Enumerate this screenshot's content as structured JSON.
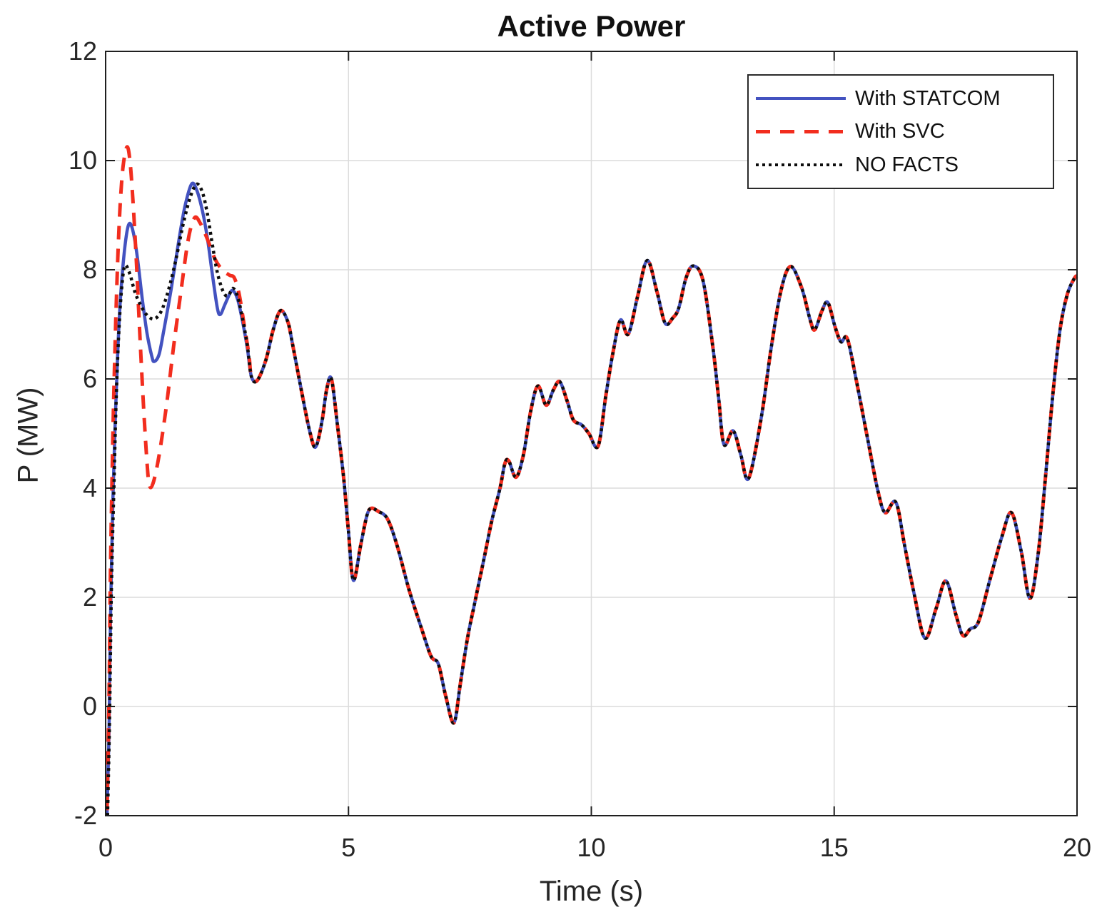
{
  "figure": {
    "title": "Active Power",
    "xlabel": "Time (s)",
    "ylabel": "P (MW)"
  },
  "chart_data": {
    "type": "line",
    "title": "Active Power",
    "xlabel": "Time (s)",
    "ylabel": "P (MW)",
    "xlim": [
      0,
      20
    ],
    "ylim": [
      -2,
      12
    ],
    "xticks": [
      "0",
      "5",
      "10",
      "15",
      "20"
    ],
    "yticks": [
      "-2",
      "0",
      "2",
      "4",
      "6",
      "8",
      "10",
      "12"
    ],
    "grid": true,
    "legend_position": "top-right",
    "colors": {
      "with_statcom": "#4352c0",
      "with_svc": "#f22d1e",
      "no_facts": "#0d0d0d",
      "grid": "#dcdcdc",
      "axis": "#1f1f1f",
      "text": "#262626"
    },
    "series": [
      {
        "name": "With STATCOM",
        "style": "solid",
        "color_key": "with_statcom",
        "head": [
          [
            0.03,
            -1.95
          ],
          [
            0.07,
            -0.4
          ],
          [
            0.1,
            1.6
          ],
          [
            0.15,
            3.8
          ],
          [
            0.2,
            5.3
          ],
          [
            0.25,
            6.5
          ],
          [
            0.3,
            7.4
          ],
          [
            0.37,
            8.2
          ],
          [
            0.44,
            8.7
          ],
          [
            0.5,
            8.85
          ],
          [
            0.57,
            8.68
          ],
          [
            0.65,
            8.25
          ],
          [
            0.75,
            7.5
          ],
          [
            0.85,
            6.85
          ],
          [
            0.95,
            6.42
          ],
          [
            1.0,
            6.32
          ],
          [
            1.1,
            6.45
          ],
          [
            1.2,
            6.9
          ],
          [
            1.35,
            7.65
          ],
          [
            1.5,
            8.5
          ],
          [
            1.63,
            9.15
          ],
          [
            1.77,
            9.57
          ],
          [
            1.88,
            9.45
          ],
          [
            2.0,
            9.05
          ],
          [
            2.1,
            8.55
          ],
          [
            2.2,
            7.9
          ],
          [
            2.3,
            7.3
          ],
          [
            2.36,
            7.18
          ],
          [
            2.45,
            7.35
          ],
          [
            2.55,
            7.55
          ],
          [
            2.62,
            7.62
          ],
          [
            2.72,
            7.45
          ],
          [
            2.82,
            7.05
          ],
          [
            2.92,
            6.55
          ]
        ]
      },
      {
        "name": "With SVC",
        "style": "dashed",
        "color_key": "with_svc",
        "head": [
          [
            0.03,
            -1.9
          ],
          [
            0.07,
            0.2
          ],
          [
            0.1,
            2.5
          ],
          [
            0.15,
            5.0
          ],
          [
            0.2,
            6.8
          ],
          [
            0.25,
            8.2
          ],
          [
            0.3,
            9.2
          ],
          [
            0.36,
            9.9
          ],
          [
            0.44,
            10.25
          ],
          [
            0.5,
            10.0
          ],
          [
            0.56,
            9.3
          ],
          [
            0.63,
            8.2
          ],
          [
            0.7,
            6.9
          ],
          [
            0.78,
            5.5
          ],
          [
            0.85,
            4.5
          ],
          [
            0.9,
            4.05
          ],
          [
            0.98,
            4.1
          ],
          [
            1.1,
            4.6
          ],
          [
            1.25,
            5.5
          ],
          [
            1.4,
            6.6
          ],
          [
            1.55,
            7.6
          ],
          [
            1.7,
            8.55
          ],
          [
            1.83,
            8.95
          ],
          [
            1.95,
            8.85
          ],
          [
            2.1,
            8.55
          ],
          [
            2.25,
            8.2
          ],
          [
            2.4,
            8.0
          ],
          [
            2.55,
            7.9
          ],
          [
            2.65,
            7.85
          ],
          [
            2.75,
            7.55
          ],
          [
            2.85,
            7.0
          ],
          [
            2.95,
            6.45
          ]
        ]
      },
      {
        "name": "NO FACTS",
        "style": "dotted",
        "color_key": "no_facts",
        "head": [
          [
            0.04,
            -2.0
          ],
          [
            0.08,
            -0.3
          ],
          [
            0.12,
            2.2
          ],
          [
            0.17,
            4.0
          ],
          [
            0.22,
            5.7
          ],
          [
            0.28,
            7.0
          ],
          [
            0.34,
            7.75
          ],
          [
            0.4,
            8.08
          ],
          [
            0.5,
            7.92
          ],
          [
            0.6,
            7.6
          ],
          [
            0.72,
            7.35
          ],
          [
            0.85,
            7.17
          ],
          [
            1.0,
            7.1
          ],
          [
            1.15,
            7.25
          ],
          [
            1.3,
            7.65
          ],
          [
            1.45,
            8.2
          ],
          [
            1.6,
            8.85
          ],
          [
            1.75,
            9.35
          ],
          [
            1.88,
            9.57
          ],
          [
            2.0,
            9.4
          ],
          [
            2.1,
            9.0
          ],
          [
            2.2,
            8.45
          ],
          [
            2.3,
            7.95
          ],
          [
            2.42,
            7.6
          ],
          [
            2.52,
            7.52
          ],
          [
            2.62,
            7.66
          ],
          [
            2.72,
            7.5
          ],
          [
            2.82,
            7.1
          ],
          [
            2.92,
            6.6
          ]
        ]
      }
    ],
    "common_tail": [
      [
        3.0,
        6.05
      ],
      [
        3.12,
        5.97
      ],
      [
        3.3,
        6.35
      ],
      [
        3.45,
        6.9
      ],
      [
        3.6,
        7.25
      ],
      [
        3.75,
        7.05
      ],
      [
        3.85,
        6.63
      ],
      [
        4.05,
        5.7
      ],
      [
        4.2,
        5.05
      ],
      [
        4.32,
        4.75
      ],
      [
        4.45,
        5.2
      ],
      [
        4.55,
        5.8
      ],
      [
        4.65,
        6.0
      ],
      [
        4.78,
        5.1
      ],
      [
        4.9,
        4.2
      ],
      [
        5.0,
        3.2
      ],
      [
        5.1,
        2.31
      ],
      [
        5.25,
        2.95
      ],
      [
        5.38,
        3.5
      ],
      [
        5.47,
        3.63
      ],
      [
        5.6,
        3.58
      ],
      [
        5.8,
        3.44
      ],
      [
        6.0,
        2.95
      ],
      [
        6.25,
        2.13
      ],
      [
        6.5,
        1.44
      ],
      [
        6.7,
        0.92
      ],
      [
        6.85,
        0.78
      ],
      [
        7.0,
        0.2
      ],
      [
        7.17,
        -0.3
      ],
      [
        7.3,
        0.4
      ],
      [
        7.45,
        1.25
      ],
      [
        7.6,
        1.9
      ],
      [
        7.8,
        2.75
      ],
      [
        7.95,
        3.4
      ],
      [
        8.12,
        4.0
      ],
      [
        8.22,
        4.45
      ],
      [
        8.3,
        4.5
      ],
      [
        8.45,
        4.2
      ],
      [
        8.6,
        4.6
      ],
      [
        8.75,
        5.4
      ],
      [
        8.9,
        5.87
      ],
      [
        9.07,
        5.52
      ],
      [
        9.22,
        5.8
      ],
      [
        9.35,
        5.95
      ],
      [
        9.5,
        5.6
      ],
      [
        9.63,
        5.25
      ],
      [
        9.8,
        5.16
      ],
      [
        9.95,
        5.0
      ],
      [
        10.14,
        4.77
      ],
      [
        10.3,
        5.7
      ],
      [
        10.45,
        6.5
      ],
      [
        10.6,
        7.08
      ],
      [
        10.76,
        6.82
      ],
      [
        10.95,
        7.5
      ],
      [
        11.15,
        8.17
      ],
      [
        11.35,
        7.6
      ],
      [
        11.52,
        7.02
      ],
      [
        11.68,
        7.12
      ],
      [
        11.8,
        7.3
      ],
      [
        11.95,
        7.85
      ],
      [
        12.1,
        8.07
      ],
      [
        12.3,
        7.8
      ],
      [
        12.5,
        6.6
      ],
      [
        12.62,
        5.66
      ],
      [
        12.73,
        4.8
      ],
      [
        12.92,
        5.05
      ],
      [
        13.08,
        4.6
      ],
      [
        13.24,
        4.18
      ],
      [
        13.5,
        5.3
      ],
      [
        13.7,
        6.55
      ],
      [
        13.9,
        7.6
      ],
      [
        14.1,
        8.06
      ],
      [
        14.33,
        7.67
      ],
      [
        14.5,
        7.1
      ],
      [
        14.6,
        6.9
      ],
      [
        14.75,
        7.25
      ],
      [
        14.87,
        7.4
      ],
      [
        15.02,
        6.95
      ],
      [
        15.14,
        6.68
      ],
      [
        15.27,
        6.74
      ],
      [
        15.45,
        6.0
      ],
      [
        15.7,
        4.85
      ],
      [
        15.9,
        3.95
      ],
      [
        16.05,
        3.55
      ],
      [
        16.27,
        3.74
      ],
      [
        16.45,
        2.95
      ],
      [
        16.65,
        2.05
      ],
      [
        16.87,
        1.25
      ],
      [
        17.1,
        1.8
      ],
      [
        17.3,
        2.3
      ],
      [
        17.5,
        1.7
      ],
      [
        17.65,
        1.3
      ],
      [
        17.8,
        1.42
      ],
      [
        17.97,
        1.55
      ],
      [
        18.2,
        2.3
      ],
      [
        18.45,
        3.1
      ],
      [
        18.65,
        3.55
      ],
      [
        18.85,
        2.85
      ],
      [
        19.03,
        1.98
      ],
      [
        19.2,
        2.8
      ],
      [
        19.35,
        4.2
      ],
      [
        19.5,
        5.7
      ],
      [
        19.65,
        6.9
      ],
      [
        19.8,
        7.55
      ],
      [
        19.95,
        7.85
      ],
      [
        20.0,
        7.88
      ]
    ]
  }
}
